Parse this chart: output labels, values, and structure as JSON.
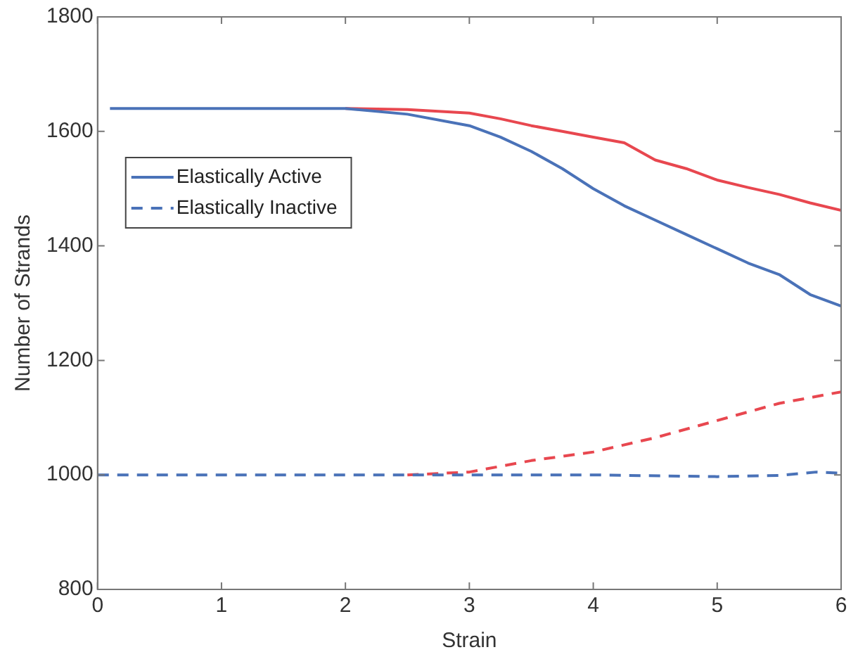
{
  "chart_data": {
    "type": "line",
    "xlabel": "Strain",
    "ylabel": "Number of Strands",
    "xlim": [
      0,
      6
    ],
    "xticks": [
      0,
      1,
      2,
      3,
      4,
      5,
      6
    ],
    "ylim": [
      800,
      1800
    ],
    "yticks": [
      800,
      1000,
      1200,
      1400,
      1600,
      1800
    ],
    "grid": false,
    "legend": "top left",
    "marker": "none",
    "series": [
      {
        "name": "Elastically Active",
        "color": "#4a72b8",
        "line_style": "solid",
        "x": [
          0.1,
          1,
          2,
          2.5,
          3,
          3.25,
          3.5,
          3.75,
          4,
          4.25,
          4.5,
          4.75,
          5,
          5.25,
          5.5,
          5.75,
          6
        ],
        "values": [
          1640,
          1640,
          1640,
          1630,
          1610,
          1590,
          1565,
          1535,
          1500,
          1470,
          1445,
          1420,
          1395,
          1370,
          1350,
          1315,
          1295
        ]
      },
      {
        "color": "#e8474f",
        "line_style": "solid",
        "x": [
          2,
          2.5,
          3,
          3.25,
          3.5,
          3.75,
          4,
          4.25,
          4.5,
          4.75,
          5,
          5.25,
          5.5,
          5.75,
          6
        ],
        "values": [
          1640,
          1638,
          1632,
          1622,
          1610,
          1600,
          1590,
          1580,
          1550,
          1535,
          1515,
          1502,
          1490,
          1475,
          1462
        ]
      },
      {
        "name": "Elastically Inactive",
        "color": "#4a72b8",
        "line_style": "dashed",
        "x": [
          0,
          1,
          2,
          3,
          4,
          5,
          5.5,
          5.8,
          6
        ],
        "values": [
          1000,
          1000,
          1000,
          1000,
          1000,
          997,
          999,
          1005,
          1003
        ]
      },
      {
        "color": "#e8474f",
        "line_style": "dashed",
        "x": [
          2.5,
          3,
          3.5,
          4,
          4.5,
          5,
          5.5,
          6
        ],
        "values": [
          1000,
          1005,
          1025,
          1040,
          1065,
          1095,
          1125,
          1145
        ]
      }
    ]
  }
}
